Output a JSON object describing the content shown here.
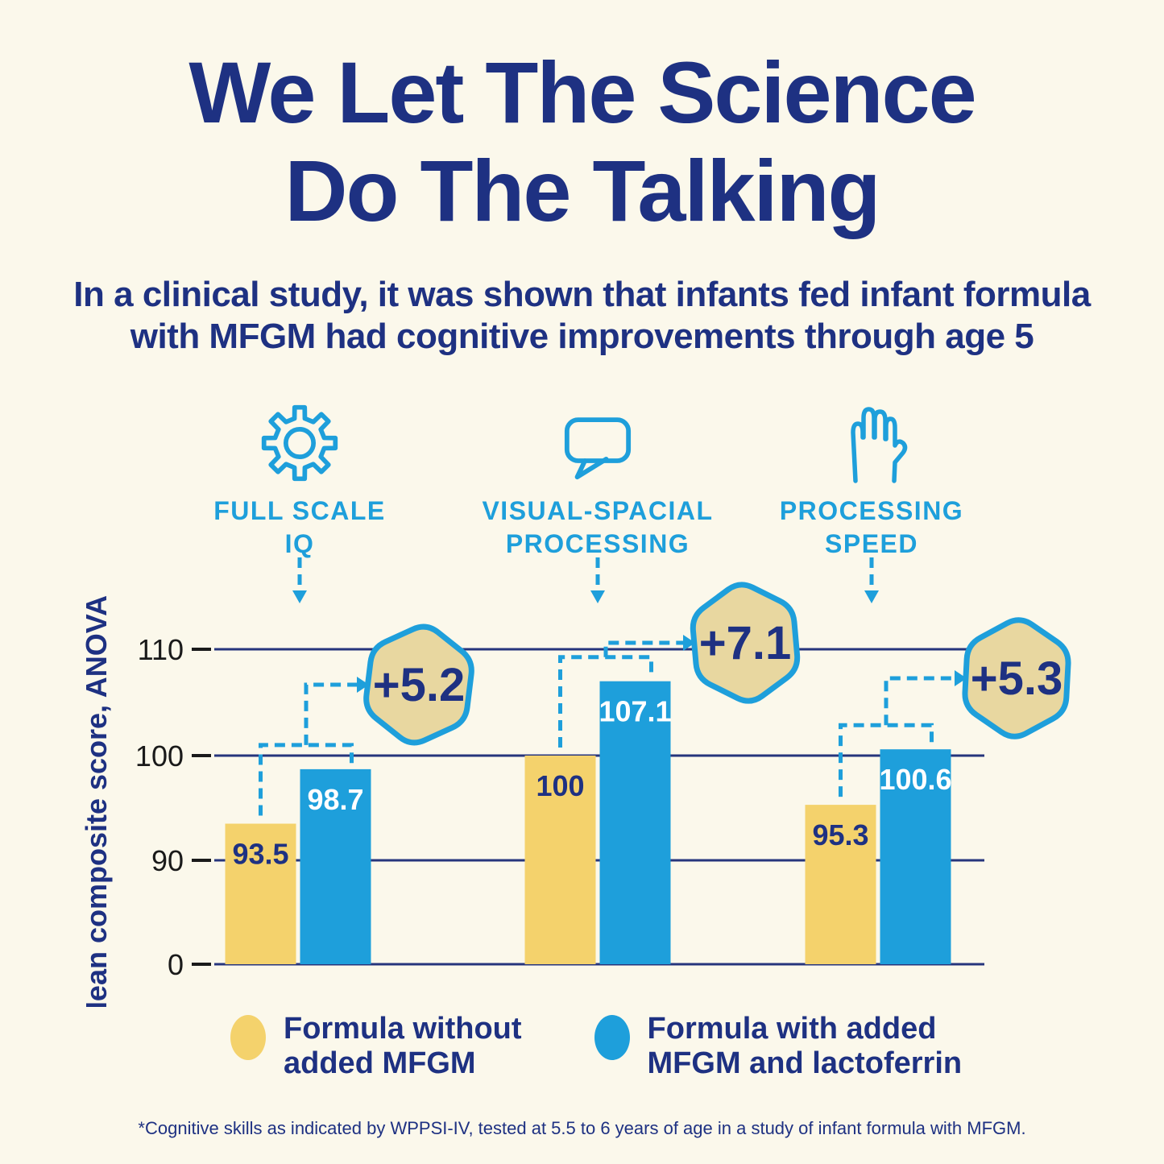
{
  "title": {
    "line1": "We Let The Science",
    "line2": "Do The Talking"
  },
  "subtitle": {
    "line1": "In a clinical study, it was shown that infants fed infant formula",
    "line2": "with MFGM had cognitive improvements through age 5"
  },
  "categories": [
    {
      "icon": "gear-icon",
      "line1": "FULL SCALE",
      "line2": "IQ"
    },
    {
      "icon": "speech-bubble-icon",
      "line1": "VISUAL-SPACIAL",
      "line2": "PROCESSING"
    },
    {
      "icon": "hand-icon",
      "line1": "PROCESSING",
      "line2": "SPEED"
    }
  ],
  "chart_data": {
    "type": "bar",
    "title": "",
    "ylabel": "Mean composite score, ANOVA",
    "yticks": [
      110,
      100,
      90,
      0
    ],
    "axis_break": "y-axis compressed between 0 and 90",
    "grid": true,
    "legend_position": "bottom",
    "categories": [
      "Full Scale IQ",
      "Visual-Spacial Processing",
      "Processing Speed"
    ],
    "series": [
      {
        "name": "Formula without added MFGM",
        "values": [
          93.5,
          100,
          95.3
        ]
      },
      {
        "name": "Formula with added MFGM and lactoferrin",
        "values": [
          98.7,
          107.1,
          100.6
        ]
      }
    ],
    "difference_badges": [
      "+5.2",
      "+7.1",
      "+5.3"
    ]
  },
  "legend": [
    {
      "line1": "Formula without",
      "line2": "added MFGM"
    },
    {
      "line1": "Formula with added",
      "line2": "MFGM and lactoferrin"
    }
  ],
  "footnote": "*Cognitive skills as indicated by WPPSI-IV, tested at 5.5 to 6 years of age in a study of infant formula with MFGM.",
  "colors": {
    "background": "#FBF8EB",
    "navy": "#1E3182",
    "blue": "#1E9FDB",
    "yellow": "#F4D26C",
    "badge_fill": "#E8D7A0",
    "gridline": "#26357C",
    "tick_label": "#1A1A1A",
    "bar_label_on_blue": "#FFFFFF"
  }
}
